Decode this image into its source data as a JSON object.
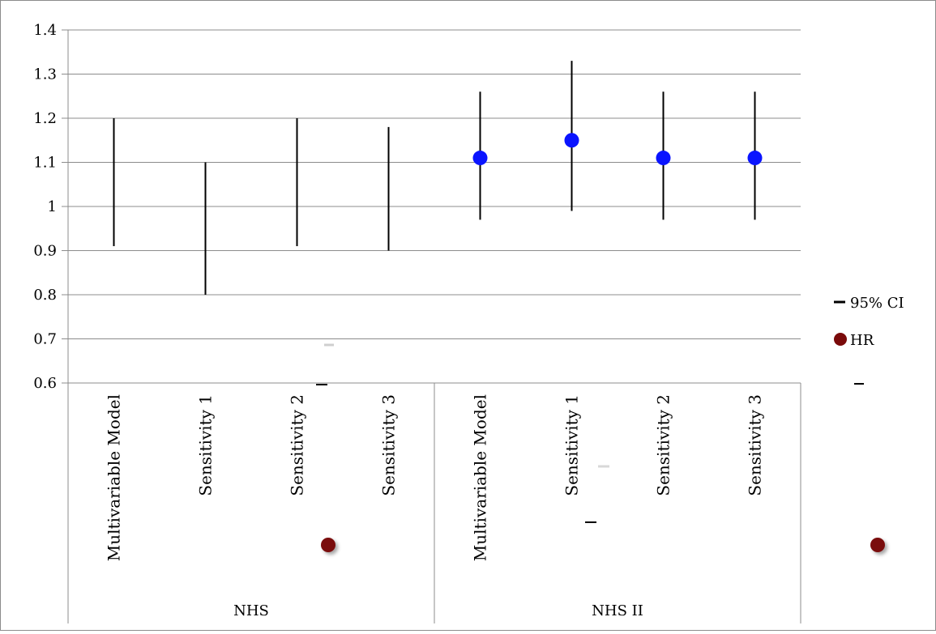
{
  "chart_data": {
    "type": "errorbar",
    "ylim": [
      0.6,
      1.4
    ],
    "yticks": [
      "0.6",
      "0.7",
      "0.8",
      "0.9",
      "1",
      "1.1",
      "1.2",
      "1.3",
      "1.4"
    ],
    "groups": [
      {
        "label": "NHS",
        "categories": [
          "Multivariable Model",
          "Sensitivity 1",
          "Sensitivity 2",
          "Sensitivity 3"
        ]
      },
      {
        "label": "NHS II",
        "categories": [
          "Multivariable Model",
          "Sensitivity 1",
          "Sensitivity 2",
          "Sensitivity 3"
        ]
      }
    ],
    "series": [
      {
        "name": "95% CI",
        "low": [
          0.91,
          0.8,
          0.91,
          0.9,
          0.97,
          0.99,
          0.97,
          0.97
        ],
        "high": [
          1.2,
          1.1,
          1.2,
          1.18,
          1.26,
          1.33,
          1.26,
          1.26
        ]
      },
      {
        "name": "HR",
        "values": [
          null,
          null,
          null,
          null,
          1.11,
          1.15,
          1.11,
          1.11
        ]
      }
    ],
    "legend": [
      "95% CI",
      "HR"
    ],
    "legend_placement": "right",
    "grid": true,
    "colors": {
      "ci": "#000000",
      "hr_point": "#0a14ff",
      "hr_legend": "#7a0a0a"
    }
  }
}
